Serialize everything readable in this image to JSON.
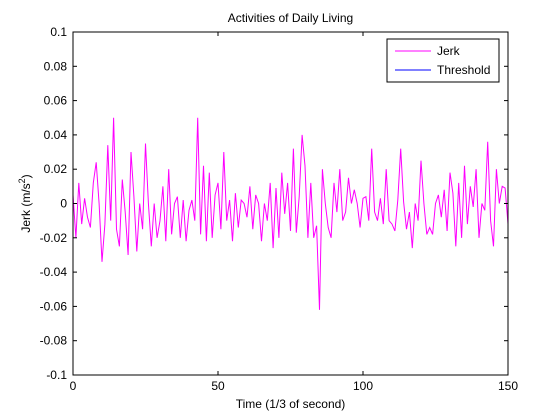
{
  "chart_data": {
    "type": "line",
    "title": "Activities of Daily Living",
    "xlabel": "Time (1/3 of second)",
    "ylabel_main": "Jerk (m/s",
    "ylabel_sup": "2",
    "ylabel_close": ")",
    "xlim": [
      0,
      150
    ],
    "ylim": [
      -0.1,
      0.1
    ],
    "xticks": [
      0,
      50,
      100,
      150
    ],
    "xtick_labels": [
      "0",
      "50",
      "100",
      "150"
    ],
    "yticks": [
      -0.1,
      -0.08,
      -0.06,
      -0.04,
      -0.02,
      0,
      0.02,
      0.04,
      0.06,
      0.08,
      0.1
    ],
    "ytick_labels": [
      "-0.1",
      "-0.08",
      "-0.06",
      "-0.04",
      "-0.02",
      "0",
      "0.02",
      "0.04",
      "0.06",
      "0.08",
      "0.1"
    ],
    "grid": false,
    "legend_position": "top-right",
    "series": [
      {
        "name": "Jerk",
        "color": "#ff00ff",
        "x": [
          0,
          1,
          2,
          3,
          4,
          5,
          6,
          7,
          8,
          9,
          10,
          11,
          12,
          13,
          14,
          15,
          16,
          17,
          18,
          19,
          20,
          21,
          22,
          23,
          24,
          25,
          26,
          27,
          28,
          29,
          30,
          31,
          32,
          33,
          34,
          35,
          36,
          37,
          38,
          39,
          40,
          41,
          42,
          43,
          44,
          45,
          46,
          47,
          48,
          49,
          50,
          51,
          52,
          53,
          54,
          55,
          56,
          57,
          58,
          59,
          60,
          61,
          62,
          63,
          64,
          65,
          66,
          67,
          68,
          69,
          70,
          71,
          72,
          73,
          74,
          75,
          76,
          77,
          78,
          79,
          80,
          81,
          82,
          83,
          84,
          85,
          86,
          87,
          88,
          89,
          90,
          91,
          92,
          93,
          94,
          95,
          96,
          97,
          98,
          99,
          100,
          101,
          102,
          103,
          104,
          105,
          106,
          107,
          108,
          109,
          110,
          111,
          112,
          113,
          114,
          115,
          116,
          117,
          118,
          119,
          120,
          121,
          122,
          123,
          124,
          125,
          126,
          127,
          128,
          129,
          130,
          131,
          132,
          133,
          134,
          135,
          136,
          137,
          138,
          139,
          140,
          141,
          142,
          143,
          144,
          145,
          146,
          147,
          148,
          149,
          150
        ],
        "y": [
          0.005,
          -0.02,
          0.012,
          -0.012,
          0.003,
          -0.008,
          -0.014,
          0.012,
          0.024,
          0.0,
          -0.034,
          -0.012,
          0.034,
          -0.01,
          0.05,
          -0.015,
          -0.025,
          0.014,
          -0.005,
          -0.03,
          0.03,
          0.004,
          -0.028,
          0.0,
          -0.015,
          0.035,
          0.0,
          -0.025,
          0.0,
          -0.02,
          -0.01,
          0.01,
          -0.022,
          0.02,
          -0.018,
          0.0,
          0.004,
          -0.02,
          0.002,
          -0.022,
          -0.004,
          0.002,
          -0.01,
          0.05,
          -0.018,
          0.022,
          -0.022,
          0.018,
          -0.02,
          0.005,
          0.012,
          -0.015,
          0.03,
          -0.01,
          0.002,
          -0.022,
          0.006,
          -0.014,
          0.002,
          0.0,
          -0.008,
          0.01,
          -0.015,
          0.005,
          0.0,
          -0.022,
          0.0,
          -0.01,
          0.012,
          -0.026,
          0.009,
          -0.02,
          0.018,
          -0.006,
          0.012,
          -0.016,
          0.032,
          -0.017,
          0.004,
          0.04,
          0.022,
          -0.02,
          0.012,
          -0.02,
          -0.013,
          -0.062,
          0.02,
          0.0,
          -0.014,
          -0.02,
          0.012,
          -0.005,
          0.02,
          -0.01,
          -0.005,
          0.015,
          0.0,
          0.008,
          0.0,
          -0.014,
          0.003,
          0.004,
          -0.01,
          0.032,
          -0.005,
          -0.01,
          0.003,
          -0.012,
          0.02,
          -0.01,
          -0.012,
          -0.016,
          0.002,
          0.032,
          0.001,
          -0.015,
          -0.005,
          -0.026,
          0.0,
          -0.01,
          0.025,
          0.0,
          -0.018,
          -0.014,
          -0.018,
          0.0,
          0.005,
          -0.008,
          0.008,
          -0.016,
          0.018,
          0.006,
          -0.025,
          0.012,
          -0.02,
          0.022,
          -0.012,
          0.01,
          -0.002,
          0.02,
          -0.02,
          0.0,
          -0.004,
          0.036,
          -0.01,
          -0.025,
          0.02,
          0.0,
          0.01,
          0.009,
          -0.012
        ]
      },
      {
        "name": "Threshold",
        "color": "#0000ff",
        "x": [
          0,
          150
        ],
        "y": [
          -0.1,
          -0.1
        ]
      }
    ]
  }
}
